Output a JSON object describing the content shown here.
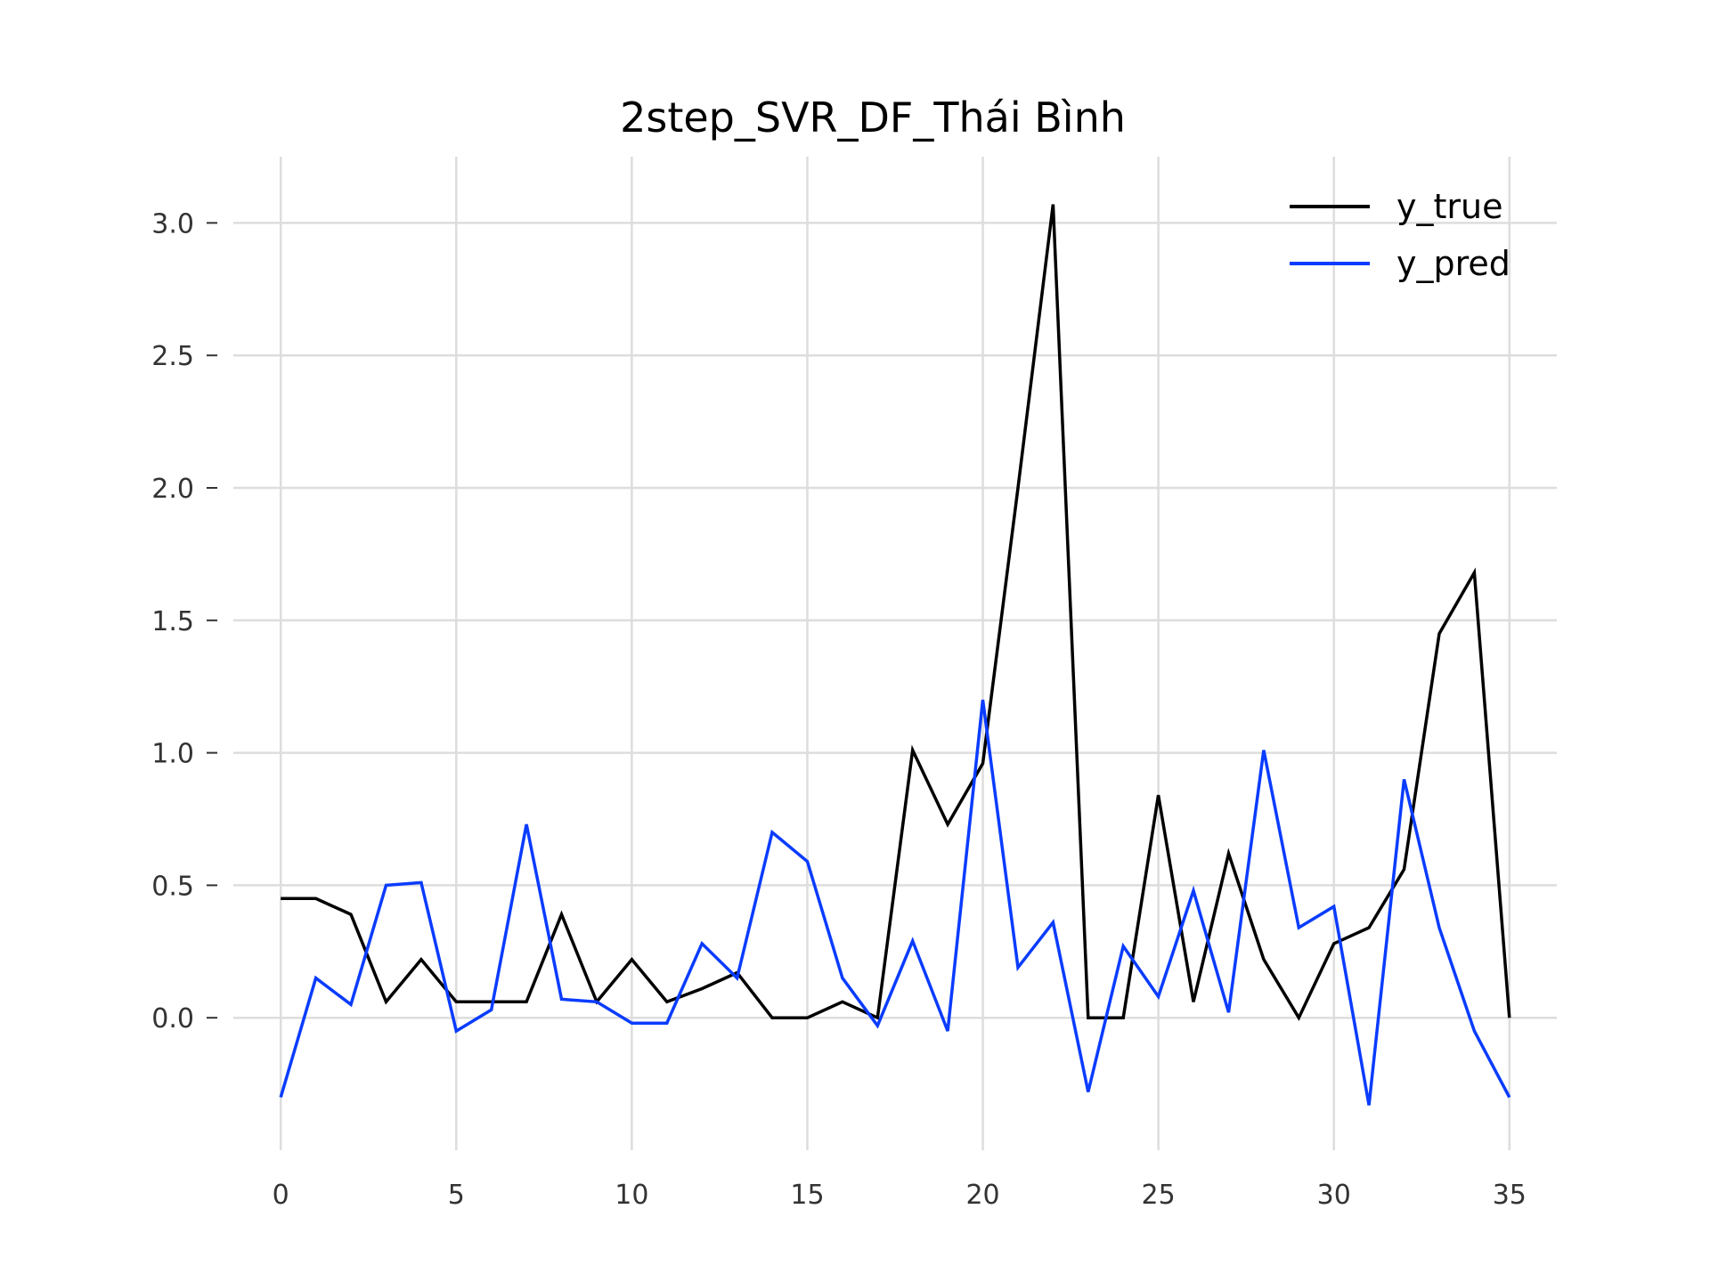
{
  "chart_data": {
    "type": "line",
    "title": "2step_SVR_DF_Thái Bình",
    "xlabel": "",
    "ylabel": "",
    "x": [
      0,
      1,
      2,
      3,
      4,
      5,
      6,
      7,
      8,
      9,
      10,
      11,
      12,
      13,
      14,
      15,
      16,
      17,
      18,
      19,
      20,
      21,
      22,
      23,
      24,
      25,
      26,
      27,
      28,
      29,
      30,
      31,
      32,
      33,
      34,
      35
    ],
    "xlim": [
      -1.35,
      36.35
    ],
    "ylim": [
      -0.5,
      3.25
    ],
    "xticks": [
      0,
      5,
      10,
      15,
      20,
      25,
      30,
      35
    ],
    "xtick_labels": [
      "0",
      "5",
      "10",
      "15",
      "20",
      "25",
      "30",
      "35"
    ],
    "yticks": [
      0.0,
      0.5,
      1.0,
      1.5,
      2.0,
      2.5,
      3.0
    ],
    "ytick_labels": [
      "0.0",
      "0.5",
      "1.0",
      "1.5",
      "2.0",
      "2.5",
      "3.0"
    ],
    "grid": true,
    "legend_position": "top-right",
    "series": [
      {
        "name": "y_true",
        "color": "#000000",
        "values": [
          0.45,
          0.45,
          0.39,
          0.06,
          0.22,
          0.06,
          0.06,
          0.06,
          0.39,
          0.06,
          0.22,
          0.06,
          0.11,
          0.17,
          0.0,
          0.0,
          0.06,
          0.0,
          1.01,
          0.73,
          0.96,
          2.0,
          3.07,
          0.0,
          0.0,
          0.84,
          0.06,
          0.62,
          0.22,
          0.0,
          0.28,
          0.34,
          0.56,
          1.45,
          1.68,
          0.0
        ]
      },
      {
        "name": "y_pred",
        "color": "#0a3cff",
        "values": [
          -0.3,
          0.15,
          0.05,
          0.5,
          0.51,
          -0.05,
          0.03,
          0.73,
          0.07,
          0.06,
          -0.02,
          -0.02,
          0.28,
          0.15,
          0.7,
          0.59,
          0.15,
          -0.03,
          0.29,
          -0.05,
          1.2,
          0.19,
          0.36,
          -0.28,
          0.27,
          0.08,
          0.48,
          0.02,
          1.01,
          0.34,
          0.42,
          -0.33,
          0.9,
          0.34,
          -0.05,
          -0.3
        ]
      }
    ]
  }
}
